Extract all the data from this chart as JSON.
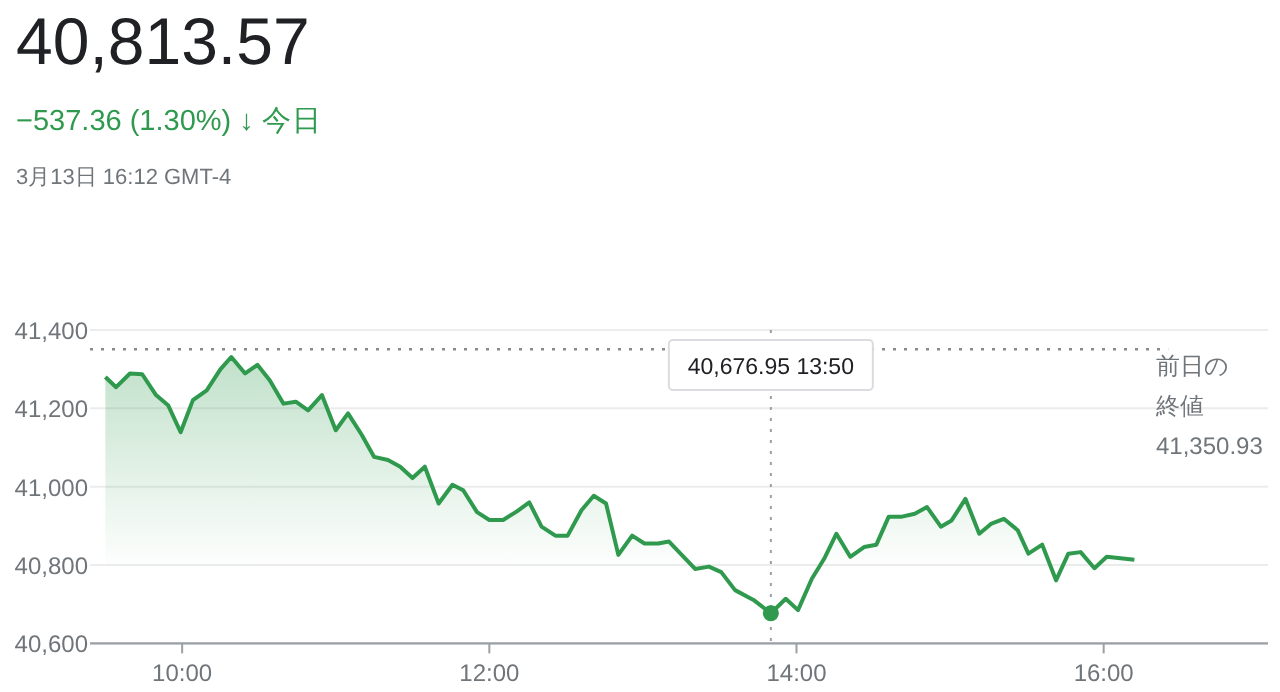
{
  "chart_data": {
    "type": "area",
    "title": "40,813.57",
    "subtitle": "−537.36 (1.30%) ↓ 今日",
    "annotations": [
      "3月13日 16:12 GMT-4",
      {
        "text": "40,676.95 13:50",
        "x": 13.833
      }
    ],
    "series": [
      {
        "type": "scatter",
        "color": "#2f9a4e",
        "x": [
          13.833
        ],
        "values": [
          40676.95
        ]
      },
      {
        "color": "#2f9a4e",
        "x": [
          9.5,
          9.57,
          9.66,
          9.74,
          9.83,
          9.91,
          9.99,
          10.07,
          10.16,
          10.25,
          10.32,
          10.41,
          10.49,
          10.57,
          10.66,
          10.74,
          10.82,
          10.91,
          11.0,
          11.08,
          11.17,
          11.25,
          11.34,
          11.42,
          11.5,
          11.58,
          11.67,
          11.76,
          11.83,
          11.92,
          12.0,
          12.09,
          12.18,
          12.26,
          12.34,
          12.43,
          12.51,
          12.6,
          12.68,
          12.76,
          12.84,
          12.93,
          13.01,
          13.1,
          13.17,
          13.34,
          13.43,
          13.51,
          13.6,
          13.72,
          13.833,
          13.93,
          14.01,
          14.1,
          14.18,
          14.26,
          14.35,
          14.44,
          14.52,
          14.6,
          14.68,
          14.77,
          14.85,
          14.94,
          15.01,
          15.1,
          15.19,
          15.27,
          15.35,
          15.44,
          15.51,
          15.6,
          15.69,
          15.77,
          15.85,
          15.94,
          16.02,
          16.2
        ],
        "values": [
          41280,
          41254,
          41289,
          41287,
          41234,
          41207,
          41139,
          41221,
          41246,
          41300,
          41331,
          41289,
          41311,
          41272,
          41212,
          41217,
          41195,
          41234,
          41144,
          41187,
          41132,
          41076,
          41068,
          41051,
          41022,
          41051,
          40957,
          41005,
          40991,
          40935,
          40915,
          40915,
          40937,
          40960,
          40898,
          40875,
          40875,
          40940,
          40977,
          40957,
          40826,
          40875,
          40855,
          40855,
          40860,
          40790,
          40796,
          40782,
          40736,
          40711,
          40676.95,
          40714,
          40685,
          40765,
          40816,
          40880,
          40821,
          40846,
          40852,
          40923,
          40923,
          40931,
          40948,
          40898,
          40914,
          40969,
          40880,
          40906,
          40918,
          40889,
          40829,
          40852,
          40761,
          40829,
          40833,
          40792,
          40821,
          40813.57
        ]
      }
    ],
    "xlim": [
      9.4,
      17.07
    ],
    "ylim": [
      40600,
      41400
    ],
    "xticks": [
      {
        "value": 10,
        "label": "10:00"
      },
      {
        "value": 12,
        "label": "12:00"
      },
      {
        "value": 14,
        "label": "14:00"
      },
      {
        "value": 16,
        "label": "16:00"
      }
    ],
    "yticks": [
      {
        "value": 40600,
        "label": "40,600"
      },
      {
        "value": 40800,
        "label": "40,800"
      },
      {
        "value": 41000,
        "label": "41,000"
      },
      {
        "value": 41200,
        "label": "41,200"
      },
      {
        "value": 41400,
        "label": "41,400"
      }
    ],
    "grid": "y",
    "ref_lines": [
      {
        "axis": "y",
        "value": 41350.93,
        "label": "前日の終値\n41,350.93",
        "line_style": "dotted"
      },
      {
        "axis": "x",
        "value": 13.833,
        "line_style": "dotted"
      }
    ]
  }
}
